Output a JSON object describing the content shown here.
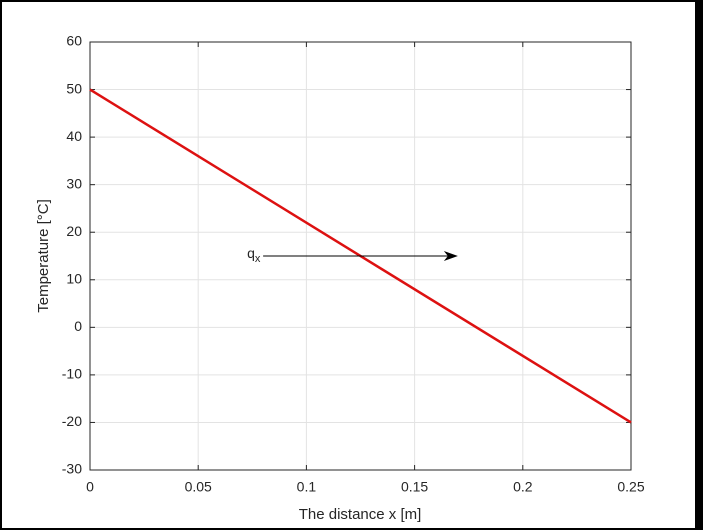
{
  "chart_data": {
    "type": "line",
    "x_label": "The distance x [m]",
    "y_label": "Temperature [°C]",
    "x": [
      0,
      0.25
    ],
    "series": [
      {
        "color": "#dd1111",
        "values": [
          50,
          -20
        ]
      }
    ],
    "xlim": [
      0,
      0.25
    ],
    "xticks": [
      0,
      0.05,
      0.1,
      0.15,
      0.2,
      0.25
    ],
    "ylim": [
      -30,
      60
    ],
    "yticks": [
      -30,
      -20,
      -10,
      0,
      10,
      20,
      30,
      40,
      50,
      60
    ],
    "grid": true,
    "annotation": {
      "text": "q",
      "subscript": "x",
      "arrow_x": [
        0.08,
        0.17
      ],
      "arrow_y": 15
    }
  }
}
